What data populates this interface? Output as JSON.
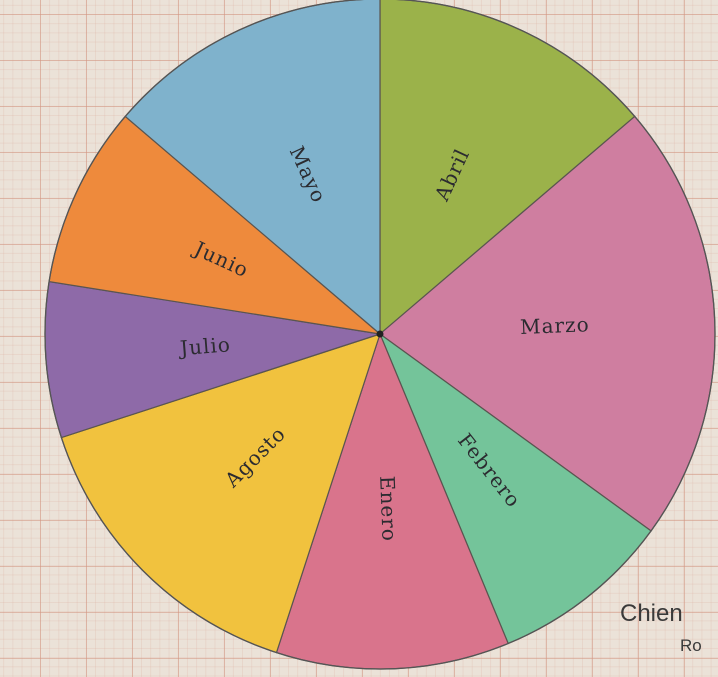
{
  "chart_data": {
    "type": "pie",
    "title": "",
    "categories": [
      "Abril",
      "Marzo",
      "Febrero",
      "Enero",
      "Agosto",
      "Julio",
      "Junio",
      "Mayo"
    ],
    "values": [
      55,
      85,
      35,
      45,
      60,
      30,
      35,
      55
    ],
    "colors": [
      "#9bb24a",
      "#cf7ea0",
      "#74c49a",
      "#d9748c",
      "#f1c23e",
      "#8e6aa8",
      "#ee8a3c",
      "#7fb2cc"
    ],
    "start_angle_deg": 0,
    "direction": "clockwise",
    "legend": "none"
  },
  "signature": {
    "line1": "Chien",
    "line2": "Ro"
  }
}
